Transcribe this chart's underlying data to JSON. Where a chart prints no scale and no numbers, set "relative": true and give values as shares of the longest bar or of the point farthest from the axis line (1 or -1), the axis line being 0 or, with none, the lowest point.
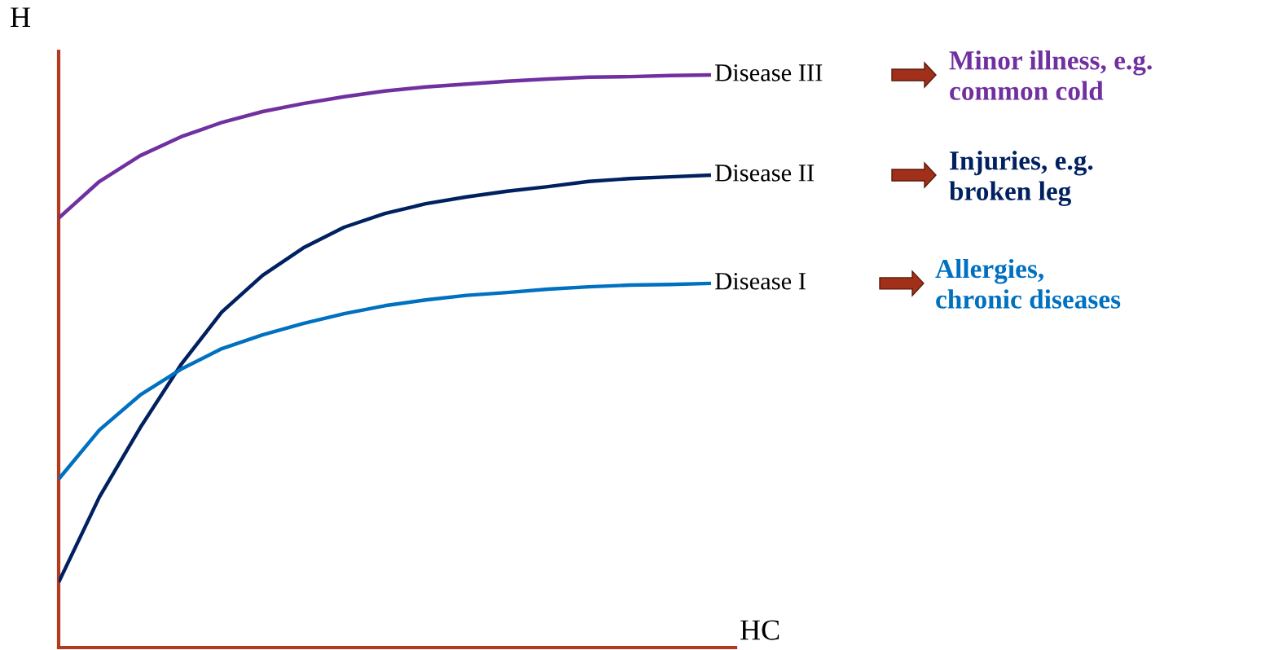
{
  "chart_data": {
    "type": "line",
    "relative": true,
    "xlabel": "HC",
    "ylabel": "H",
    "categories": [
      null,
      null,
      null,
      null,
      null,
      null,
      null,
      null,
      null,
      null,
      null,
      null,
      null,
      null,
      null,
      null,
      null
    ],
    "series": [
      {
        "name": "Disease III",
        "color": "#7030a0",
        "values": [
          0.75,
          0.814,
          0.859,
          0.892,
          0.917,
          0.936,
          0.95,
          0.962,
          0.972,
          0.979,
          0.984,
          0.989,
          0.993,
          0.996,
          0.997,
          0.999,
          1.0
        ]
      },
      {
        "name": "Disease II",
        "color": "#002060",
        "values": [
          0.114,
          0.263,
          0.384,
          0.494,
          0.586,
          0.65,
          0.698,
          0.734,
          0.758,
          0.775,
          0.787,
          0.797,
          0.805,
          0.814,
          0.819,
          0.822,
          0.825
        ]
      },
      {
        "name": "Disease I",
        "color": "#0070c0",
        "values": [
          0.294,
          0.38,
          0.441,
          0.486,
          0.522,
          0.546,
          0.566,
          0.583,
          0.597,
          0.607,
          0.615,
          0.62,
          0.626,
          0.63,
          0.633,
          0.634,
          0.636
        ]
      }
    ],
    "annotations": [
      "Minor illness, e.g.\ncommon cold",
      "Injuries, e.g.\nbroken leg",
      "Allergies,\nchronic diseases"
    ],
    "legend": false,
    "marker": "none",
    "line_style": "solid"
  }
}
